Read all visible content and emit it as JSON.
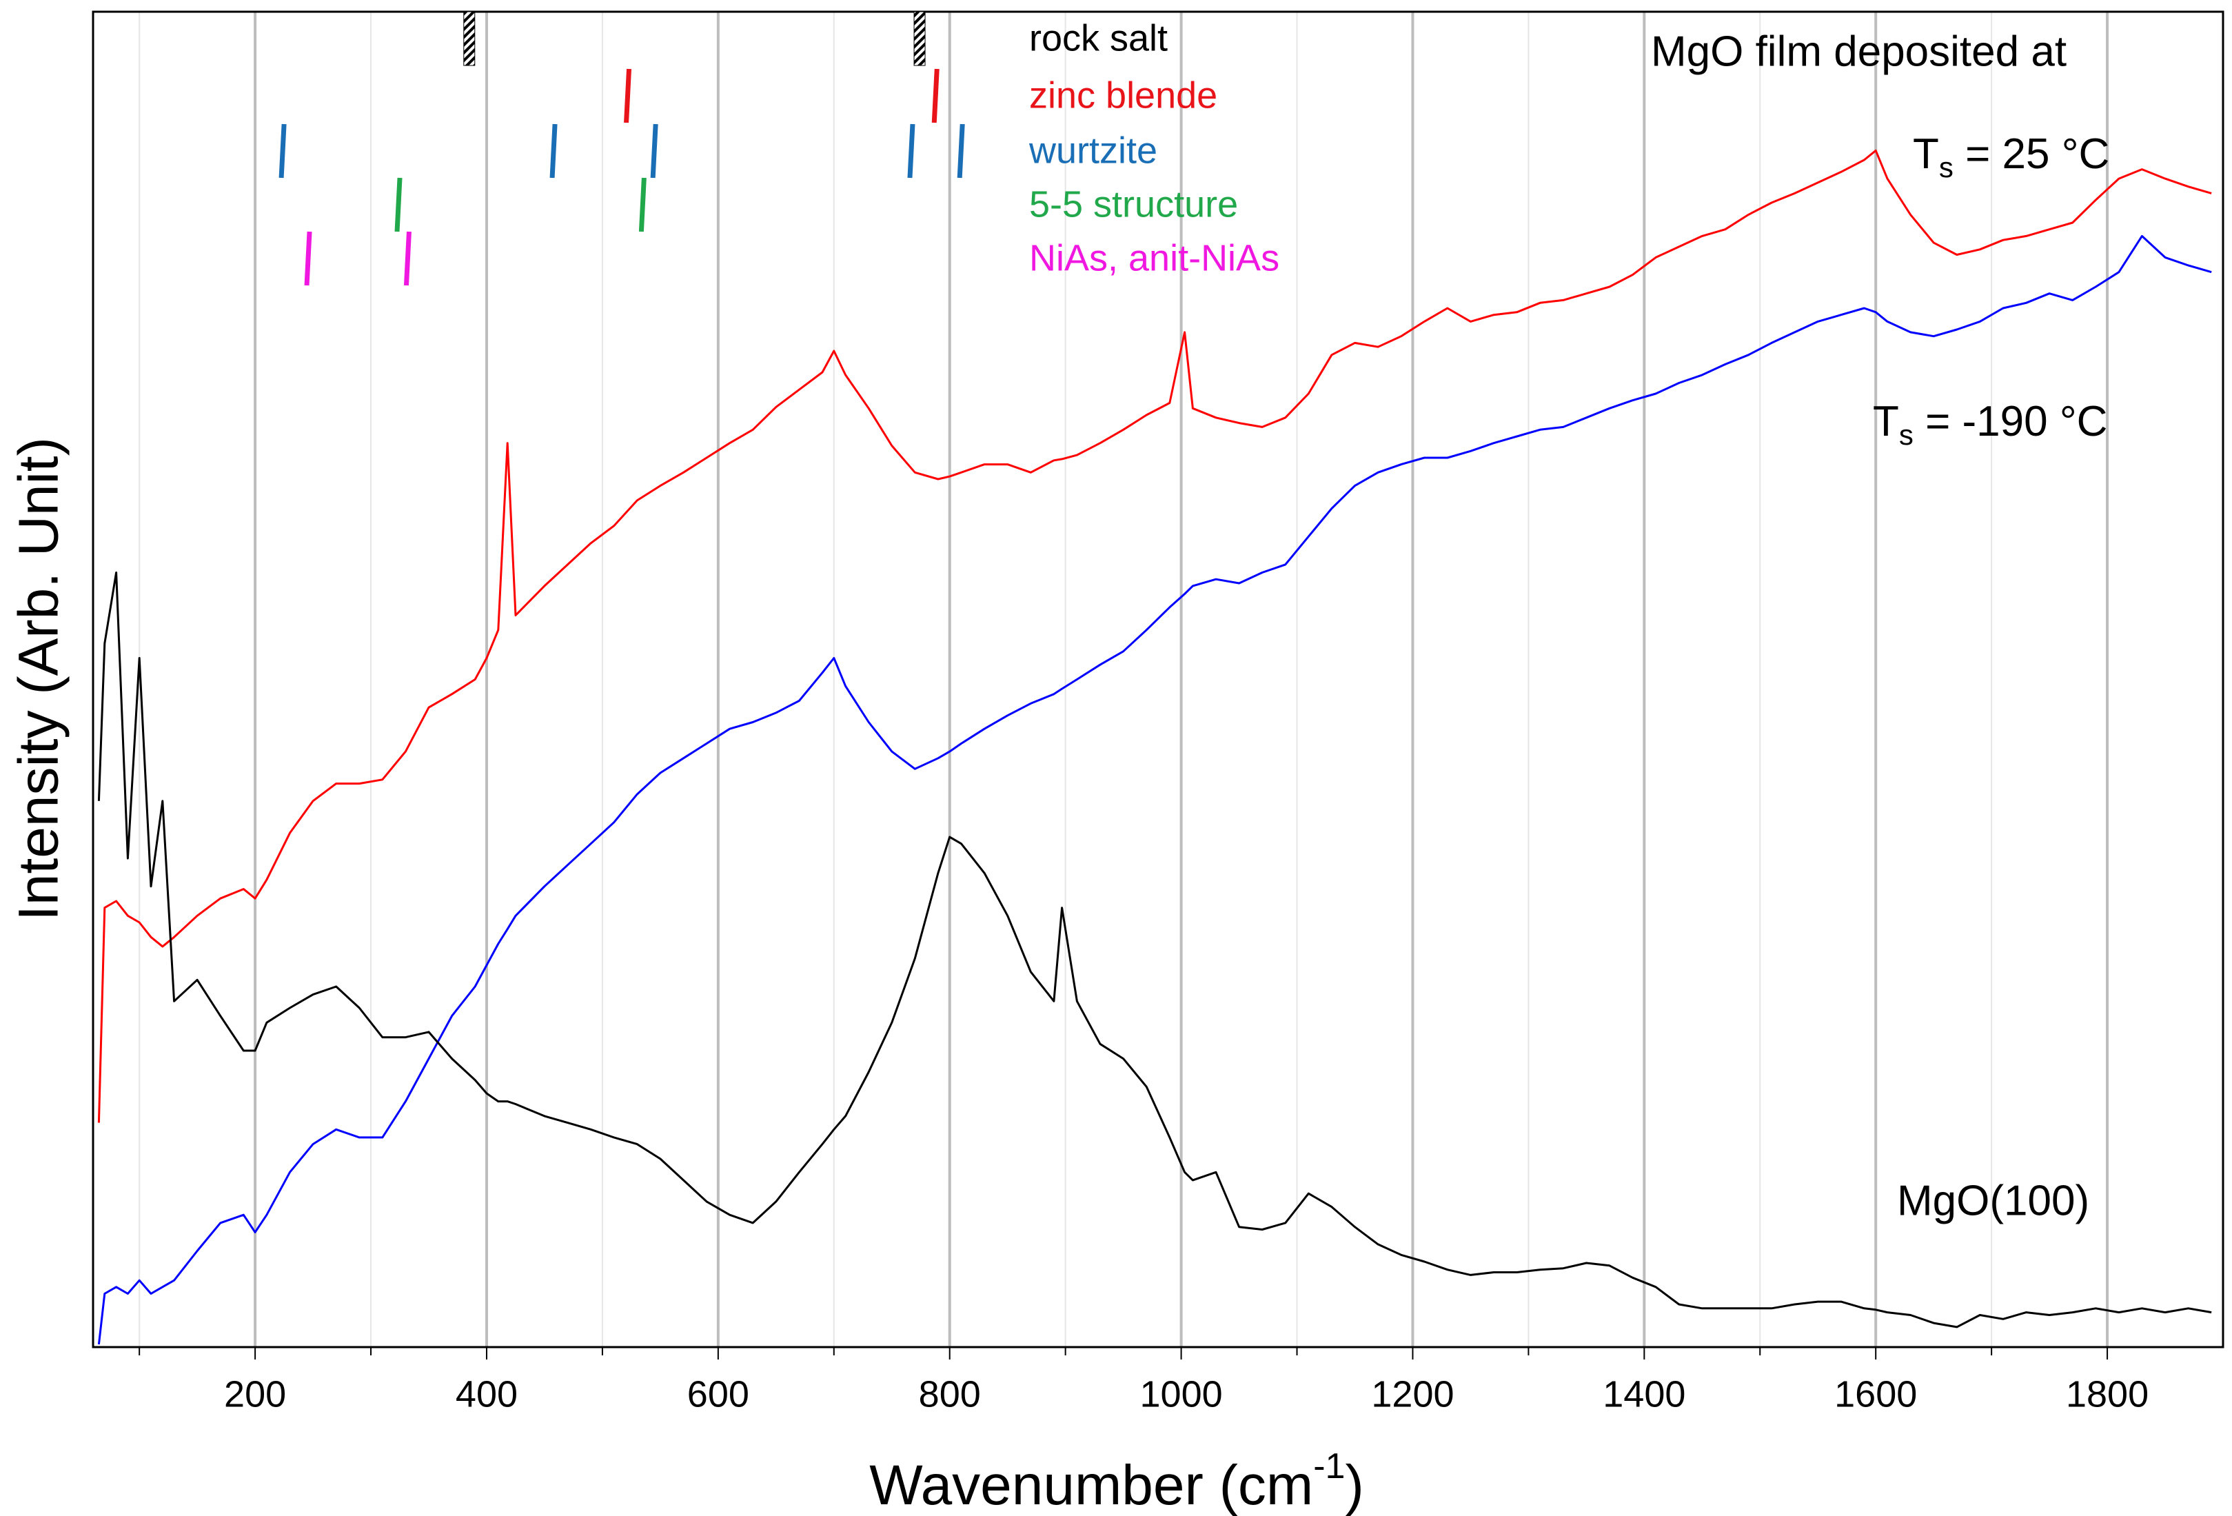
{
  "chart_data": {
    "type": "line",
    "x_label": [
      "Wavenumber (cm",
      "-1",
      ")"
    ],
    "y_label": "Intensity (Arb. Unit)",
    "xlim": [
      60,
      1900
    ],
    "ylim": [
      0,
      100
    ],
    "xticks": [
      200,
      400,
      600,
      800,
      1000,
      1200,
      1400,
      1600,
      1800
    ],
    "xticks_minor": [
      100,
      300,
      500,
      700,
      900,
      1100,
      1300,
      1500,
      1700
    ],
    "grid": true,
    "x": [
      65,
      70,
      80,
      90,
      100,
      110,
      120,
      130,
      150,
      170,
      190,
      200,
      210,
      230,
      250,
      270,
      290,
      310,
      330,
      350,
      370,
      390,
      400,
      410,
      418,
      425,
      450,
      470,
      490,
      510,
      530,
      550,
      570,
      590,
      610,
      630,
      650,
      670,
      690,
      700,
      710,
      730,
      750,
      770,
      790,
      800,
      810,
      830,
      850,
      870,
      890,
      897,
      910,
      930,
      950,
      970,
      990,
      1003,
      1010,
      1030,
      1050,
      1070,
      1090,
      1110,
      1130,
      1150,
      1170,
      1190,
      1210,
      1230,
      1250,
      1270,
      1290,
      1310,
      1330,
      1350,
      1370,
      1390,
      1410,
      1430,
      1450,
      1470,
      1490,
      1510,
      1530,
      1550,
      1570,
      1590,
      1600,
      1610,
      1630,
      1650,
      1670,
      1690,
      1710,
      1730,
      1750,
      1770,
      1790,
      1810,
      1830,
      1850,
      1870,
      1890
    ],
    "series": [
      {
        "color": "#ff0000",
        "values": [
          16.8,
          32.9,
          33.4,
          32.3,
          31.8,
          30.7,
          30.0,
          30.7,
          32.3,
          33.6,
          34.3,
          33.6,
          35.0,
          38.5,
          40.9,
          42.2,
          42.2,
          42.5,
          44.6,
          47.9,
          48.9,
          50.0,
          51.6,
          53.7,
          67.7,
          54.8,
          57.0,
          58.6,
          60.2,
          61.5,
          63.4,
          64.5,
          65.5,
          66.6,
          67.7,
          68.7,
          70.4,
          71.7,
          73.0,
          74.6,
          72.8,
          70.3,
          67.5,
          65.5,
          65.0,
          65.2,
          65.5,
          66.1,
          66.1,
          65.5,
          66.4,
          66.5,
          66.8,
          67.7,
          68.7,
          69.8,
          70.7,
          76.0,
          70.3,
          69.6,
          69.2,
          68.9,
          69.6,
          71.4,
          74.3,
          75.2,
          74.9,
          75.7,
          76.8,
          77.8,
          76.8,
          77.3,
          77.5,
          78.2,
          78.4,
          78.9,
          79.4,
          80.3,
          81.6,
          82.4,
          83.2,
          83.7,
          84.8,
          85.7,
          86.4,
          87.2,
          88.0,
          88.9,
          89.6,
          87.5,
          84.8,
          82.7,
          81.8,
          82.2,
          82.9,
          83.2,
          83.7,
          84.2,
          85.9,
          87.5,
          88.2,
          87.5,
          86.9,
          86.4
        ]
      },
      {
        "color": "#0000ff",
        "values": [
          0.2,
          4.0,
          4.5,
          4.0,
          5.0,
          4.0,
          4.5,
          5.0,
          7.2,
          9.3,
          9.9,
          8.6,
          9.9,
          13.1,
          15.2,
          16.3,
          15.7,
          15.7,
          18.4,
          21.6,
          24.8,
          27.0,
          28.6,
          30.2,
          31.3,
          32.3,
          34.5,
          36.1,
          37.7,
          39.3,
          41.4,
          43.0,
          44.1,
          45.2,
          46.3,
          46.8,
          47.5,
          48.4,
          50.5,
          51.6,
          49.5,
          46.8,
          44.6,
          43.3,
          44.1,
          44.6,
          45.2,
          46.3,
          47.3,
          48.2,
          48.9,
          49.3,
          50.0,
          51.1,
          52.1,
          53.7,
          55.4,
          56.4,
          57.0,
          57.5,
          57.2,
          58.0,
          58.6,
          60.7,
          62.8,
          64.5,
          65.5,
          66.1,
          66.6,
          66.6,
          67.1,
          67.7,
          68.2,
          68.7,
          68.9,
          69.6,
          70.3,
          70.9,
          71.4,
          72.2,
          72.8,
          73.6,
          74.3,
          75.2,
          76.0,
          76.8,
          77.3,
          77.8,
          77.5,
          76.8,
          76.0,
          75.7,
          76.2,
          76.8,
          77.8,
          78.2,
          78.9,
          78.4,
          79.4,
          80.5,
          83.2,
          81.6,
          81.0,
          80.5
        ]
      },
      {
        "color": "#000000",
        "values": [
          40.9,
          52.7,
          58.0,
          36.6,
          51.6,
          34.5,
          40.9,
          25.9,
          27.5,
          24.8,
          22.2,
          22.2,
          24.3,
          25.4,
          26.4,
          27.0,
          25.4,
          23.2,
          23.2,
          23.6,
          21.6,
          20.0,
          19.0,
          18.4,
          18.4,
          18.2,
          17.3,
          16.8,
          16.3,
          15.7,
          15.2,
          14.1,
          12.5,
          10.9,
          9.9,
          9.3,
          10.9,
          13.1,
          15.2,
          16.3,
          17.3,
          20.6,
          24.3,
          29.1,
          35.5,
          38.2,
          37.7,
          35.5,
          32.3,
          28.1,
          25.9,
          32.9,
          25.9,
          22.7,
          21.6,
          19.5,
          15.7,
          13.1,
          12.5,
          13.1,
          9.0,
          8.8,
          9.3,
          11.5,
          10.5,
          9.0,
          7.7,
          6.9,
          6.4,
          5.8,
          5.4,
          5.6,
          5.6,
          5.8,
          5.9,
          6.3,
          6.1,
          5.2,
          4.5,
          3.2,
          2.9,
          2.9,
          2.9,
          2.9,
          3.2,
          3.4,
          3.4,
          2.9,
          2.8,
          2.6,
          2.4,
          1.8,
          1.5,
          2.4,
          2.1,
          2.6,
          2.4,
          2.6,
          2.9,
          2.6,
          2.9,
          2.6,
          2.9,
          2.6
        ]
      }
    ],
    "references": [
      {
        "name": "rock salt",
        "color": "#000000",
        "hatched": true,
        "positions": [
          385,
          774
        ]
      },
      {
        "name": "zinc blende",
        "color": "#e8141a",
        "positions": [
          523,
          789
        ]
      },
      {
        "name": "wurtzite",
        "color": "#1a6eb5",
        "positions": [
          225,
          459,
          546,
          768,
          811
        ]
      },
      {
        "name": "5-5 structure",
        "color": "#20a84a",
        "positions": [
          325,
          536
        ]
      },
      {
        "name": "NiAs, anit-NiAs",
        "color": "#f018e0",
        "positions": [
          247,
          333
        ]
      }
    ],
    "annotations": [
      {
        "text": "MgO film  deposited at"
      },
      {
        "parts": [
          "T",
          "s",
          " = 25 °C"
        ]
      },
      {
        "parts": [
          "T",
          "s",
          " = -190 °C"
        ]
      },
      {
        "text": "MgO(100)"
      }
    ]
  }
}
